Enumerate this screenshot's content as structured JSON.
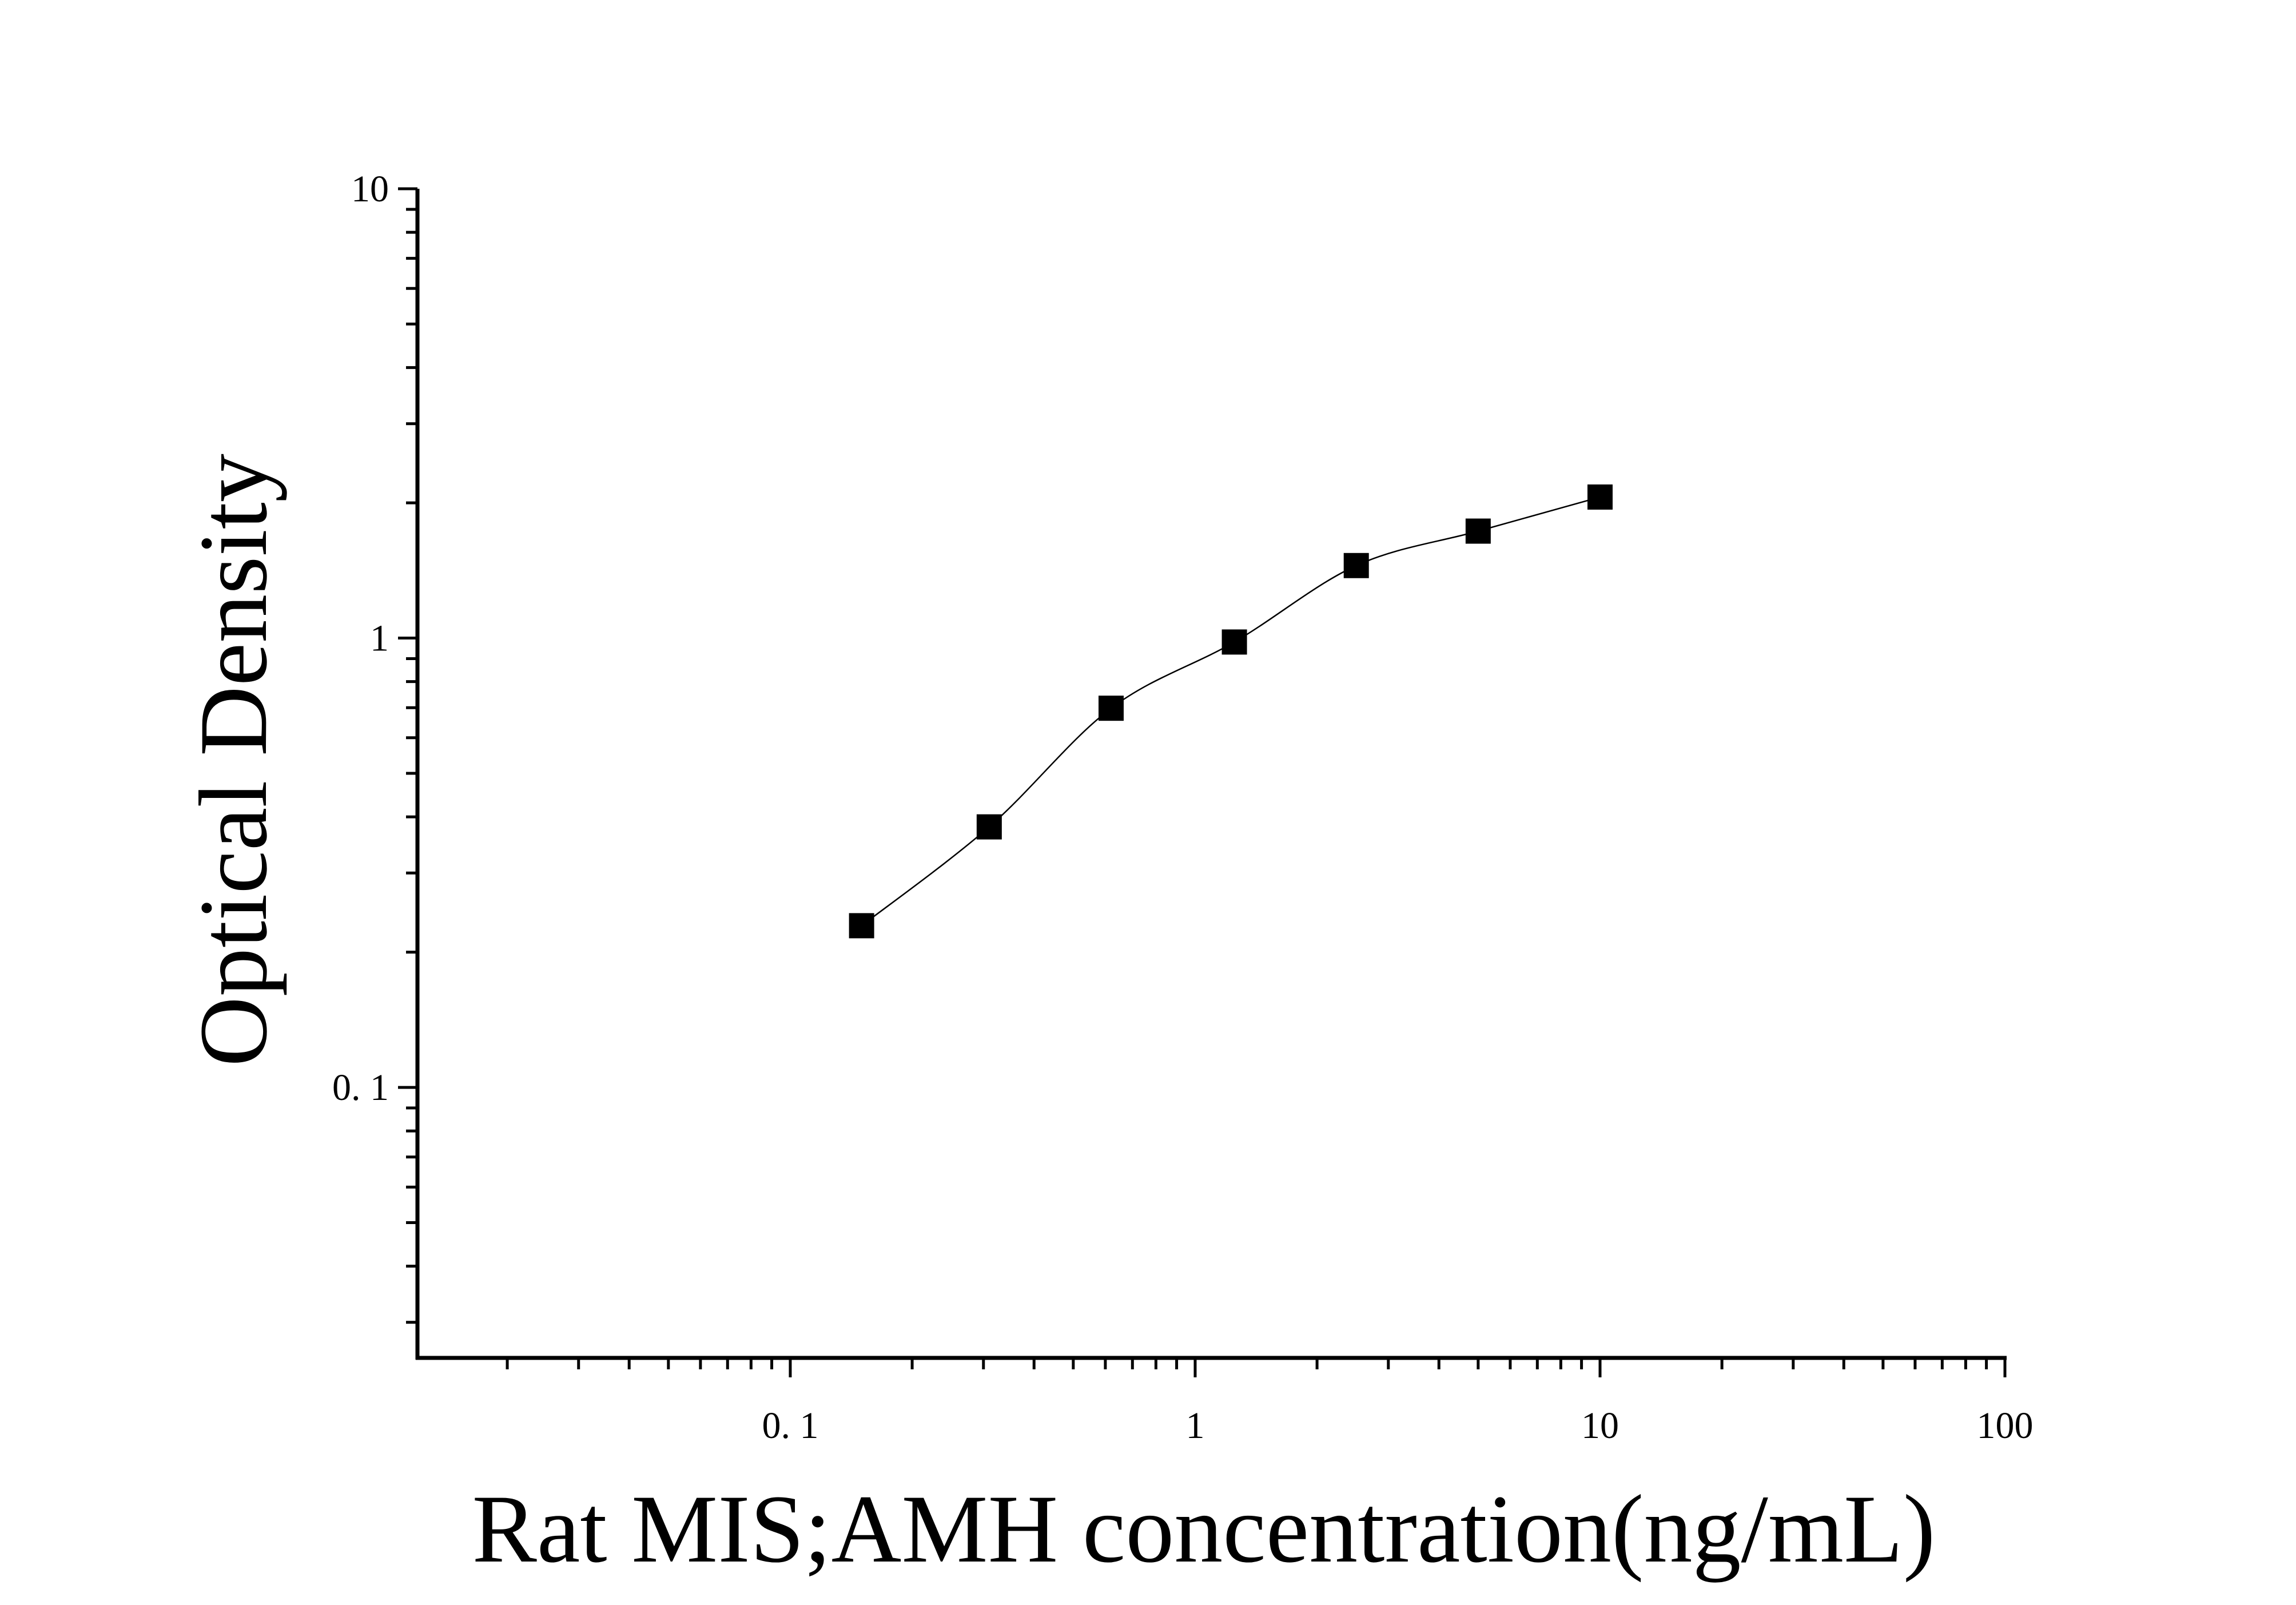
{
  "chart_data": {
    "type": "scatter",
    "title": "",
    "xlabel": "Rat MIS;AMH concentration(ng/mL)",
    "ylabel": "Optical Density",
    "x_scale": "log",
    "y_scale": "log",
    "xlim": [
      0.012,
      100
    ],
    "ylim": [
      0.025,
      10
    ],
    "x_tick_labels": [
      {
        "value": 0.1,
        "label": "0. 1"
      },
      {
        "value": 1,
        "label": "1"
      },
      {
        "value": 10,
        "label": "10"
      },
      {
        "value": 100,
        "label": "100"
      }
    ],
    "y_tick_labels": [
      {
        "value": 0.1,
        "label": "0. 1"
      },
      {
        "value": 1,
        "label": "1"
      },
      {
        "value": 10,
        "label": "10"
      }
    ],
    "grid": false,
    "legend": "none",
    "series": [
      {
        "marker": "square",
        "color": "#000000",
        "fit_curve": true,
        "x": [
          0.15,
          0.31,
          0.62,
          1.25,
          2.5,
          5,
          10
        ],
        "y": [
          0.229,
          0.38,
          0.698,
          0.98,
          1.45,
          1.73,
          2.06
        ]
      }
    ]
  }
}
